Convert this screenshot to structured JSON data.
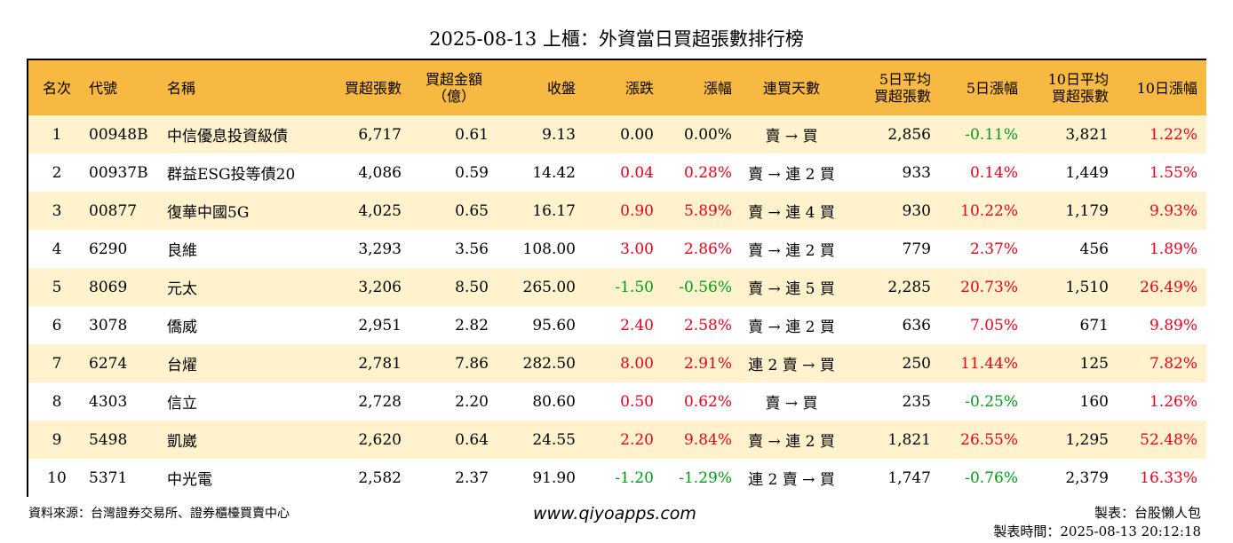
{
  "title": "2025-08-13 上櫃：外資當日買超張數排行榜",
  "headers": {
    "rank": "名次",
    "code": "代號",
    "name": "名稱",
    "buy_lots": "買超張數",
    "amount_l1": "買超金額",
    "amount_l2": "（億）",
    "close": "收盤",
    "change": "漲跌",
    "change_pct": "漲幅",
    "streak": "連買天數",
    "avg5_l1": "5日平均",
    "avg5_l2": "買超張數",
    "pct5": "5日漲幅",
    "avg10_l1": "10日平均",
    "avg10_l2": "買超張數",
    "pct10": "10日漲幅"
  },
  "rows": [
    {
      "rank": "1",
      "code": "00948B",
      "name": "中信優息投資級債",
      "buy_lots": "6,717",
      "amount": "0.61",
      "close": "9.13",
      "change": "0.00",
      "change_pct": "0.00%",
      "streak": "賣 → 買",
      "avg5": "2,856",
      "pct5": "-0.11%",
      "avg10": "3,821",
      "pct10": "1.22%"
    },
    {
      "rank": "2",
      "code": "00937B",
      "name": "群益ESG投等債20",
      "buy_lots": "4,086",
      "amount": "0.59",
      "close": "14.42",
      "change": "0.04",
      "change_pct": "0.28%",
      "streak": "賣 → 連 2 買",
      "avg5": "933",
      "pct5": "0.14%",
      "avg10": "1,449",
      "pct10": "1.55%"
    },
    {
      "rank": "3",
      "code": "00877",
      "name": "復華中國5G",
      "buy_lots": "4,025",
      "amount": "0.65",
      "close": "16.17",
      "change": "0.90",
      "change_pct": "5.89%",
      "streak": "賣 → 連 4 買",
      "avg5": "930",
      "pct5": "10.22%",
      "avg10": "1,179",
      "pct10": "9.93%"
    },
    {
      "rank": "4",
      "code": "6290",
      "name": "良維",
      "buy_lots": "3,293",
      "amount": "3.56",
      "close": "108.00",
      "change": "3.00",
      "change_pct": "2.86%",
      "streak": "賣 → 連 2 買",
      "avg5": "779",
      "pct5": "2.37%",
      "avg10": "456",
      "pct10": "1.89%"
    },
    {
      "rank": "5",
      "code": "8069",
      "name": "元太",
      "buy_lots": "3,206",
      "amount": "8.50",
      "close": "265.00",
      "change": "-1.50",
      "change_pct": "-0.56%",
      "streak": "賣 → 連 5 買",
      "avg5": "2,285",
      "pct5": "20.73%",
      "avg10": "1,510",
      "pct10": "26.49%"
    },
    {
      "rank": "6",
      "code": "3078",
      "name": "僑威",
      "buy_lots": "2,951",
      "amount": "2.82",
      "close": "95.60",
      "change": "2.40",
      "change_pct": "2.58%",
      "streak": "賣 → 連 2 買",
      "avg5": "636",
      "pct5": "7.05%",
      "avg10": "671",
      "pct10": "9.89%"
    },
    {
      "rank": "7",
      "code": "6274",
      "name": "台燿",
      "buy_lots": "2,781",
      "amount": "7.86",
      "close": "282.50",
      "change": "8.00",
      "change_pct": "2.91%",
      "streak": "連 2 賣 → 買",
      "avg5": "250",
      "pct5": "11.44%",
      "avg10": "125",
      "pct10": "7.82%"
    },
    {
      "rank": "8",
      "code": "4303",
      "name": "信立",
      "buy_lots": "2,728",
      "amount": "2.20",
      "close": "80.60",
      "change": "0.50",
      "change_pct": "0.62%",
      "streak": "賣 → 買",
      "avg5": "235",
      "pct5": "-0.25%",
      "avg10": "160",
      "pct10": "1.26%"
    },
    {
      "rank": "9",
      "code": "5498",
      "name": "凱崴",
      "buy_lots": "2,620",
      "amount": "0.64",
      "close": "24.55",
      "change": "2.20",
      "change_pct": "9.84%",
      "streak": "賣 → 連 2 買",
      "avg5": "1,821",
      "pct5": "26.55%",
      "avg10": "1,295",
      "pct10": "52.48%"
    },
    {
      "rank": "10",
      "code": "5371",
      "name": "中光電",
      "buy_lots": "2,582",
      "amount": "2.37",
      "close": "91.90",
      "change": "-1.20",
      "change_pct": "-1.29%",
      "streak": "連 2 賣 → 買",
      "avg5": "1,747",
      "pct5": "-0.76%",
      "avg10": "2,379",
      "pct10": "16.33%"
    }
  ],
  "footer": {
    "source": "資料來源：台灣證券交易所、證券櫃檯買賣中心",
    "website": "www.qiyoapps.com",
    "author": "製表：台股懶人包",
    "time": "製表時間：2025-08-13 20:12:18"
  },
  "colors": {
    "header_bg": "#f7b942",
    "row_alt_bg": "#fff2cc",
    "positive": "#e8001a",
    "negative": "#009a1a"
  }
}
